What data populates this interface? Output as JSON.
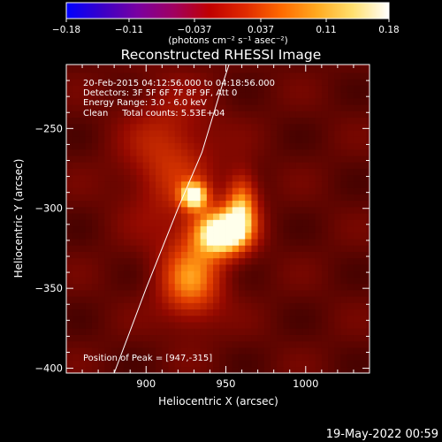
{
  "chart_data": {
    "type": "heatmap",
    "title": "Reconstructed RHESSI Image",
    "xlabel": "Heliocentric X (arcsec)",
    "ylabel": "Heliocentric Y (arcsec)",
    "xlim": [
      850,
      1040
    ],
    "ylim": [
      -403,
      -210
    ],
    "xticks": [
      900,
      950,
      1000
    ],
    "yticks": [
      -250,
      -300,
      -350,
      -400
    ],
    "xtick_labels": [
      "900",
      "950",
      "1000"
    ],
    "ytick_labels": [
      "−250",
      "−300",
      "−350",
      "−400"
    ],
    "annotations": [
      "20-Feb-2015 04:12:56.000 to 04:18:56.000",
      "Detectors: 3F 5F 6F 7F 8F 9F, Att 0",
      "Energy Range: 3.0 - 6.0 keV",
      "Clean     Total counts: 5.53E+04"
    ],
    "peak_label": "Position of Peak = [947,-315]",
    "peak": [
      947,
      -315
    ],
    "sources": [
      {
        "x": 947,
        "y": -315,
        "sx": 12,
        "sy": 10,
        "amp": 0.18
      },
      {
        "x": 930,
        "y": -292,
        "sx": 6,
        "sy": 6,
        "amp": 0.14
      },
      {
        "x": 960,
        "y": -298,
        "sx": 7,
        "sy": 14,
        "amp": 0.11
      },
      {
        "x": 928,
        "y": -345,
        "sx": 14,
        "sy": 18,
        "amp": 0.1
      },
      {
        "x": 915,
        "y": -270,
        "sx": 20,
        "sy": 30,
        "amp": 0.06
      }
    ],
    "limb": [
      [
        880,
        -403
      ],
      [
        900,
        -350
      ],
      [
        920,
        -300
      ],
      [
        935,
        -265
      ],
      [
        948,
        -222
      ],
      [
        952,
        -210
      ]
    ],
    "colorbar": {
      "min": -0.18,
      "max": 0.18,
      "tick_values": [
        -0.18,
        -0.11,
        -0.037,
        0.037,
        0.11,
        0.18
      ],
      "tick_labels": [
        "−0.18",
        "−0.11",
        "−0.037",
        "0.037",
        "0.11",
        "0.18"
      ],
      "units": "(photons cm⁻² s⁻¹ asec⁻²)",
      "colors": [
        "#0000ff",
        "#3a00c8",
        "#7a00a0",
        "#a00060",
        "#c00000",
        "#e02a00",
        "#ff6a00",
        "#ffaa20",
        "#ffe070",
        "#ffffff"
      ]
    },
    "grid": false
  },
  "footer_date": "19-May-2022 00:59"
}
